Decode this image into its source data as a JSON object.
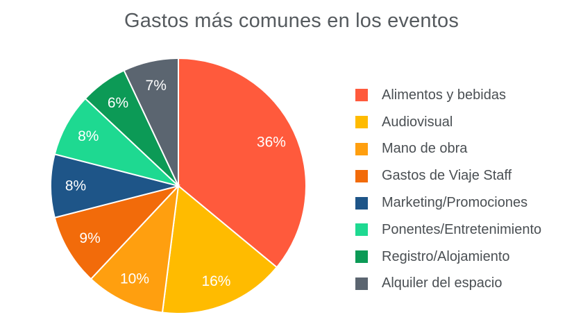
{
  "chart_data": {
    "type": "pie",
    "title": "Gastos más comunes en los eventos",
    "legend_position": "right",
    "slices": [
      {
        "name": "Alimentos y bebidas",
        "value": 36,
        "label": "36%",
        "color": "#ff5a3c"
      },
      {
        "name": "Audiovisual",
        "value": 16,
        "label": "16%",
        "color": "#ffbb00"
      },
      {
        "name": "Mano de obra",
        "value": 10,
        "label": "10%",
        "color": "#ff9f0f"
      },
      {
        "name": "Gastos de Viaje  Staff",
        "value": 9,
        "label": "9%",
        "color": "#f26b0a"
      },
      {
        "name": "Marketing/Promociones",
        "value": 8,
        "label": "8%",
        "color": "#1e5588"
      },
      {
        "name": "Ponentes/Entretenimiento",
        "value": 8,
        "label": "8%",
        "color": "#1ed991"
      },
      {
        "name": "Registro/Alojamiento",
        "value": 6,
        "label": "6%",
        "color": "#0c9a56"
      },
      {
        "name": "Alquiler del espacio",
        "value": 7,
        "label": "7%",
        "color": "#5b6570"
      }
    ]
  }
}
